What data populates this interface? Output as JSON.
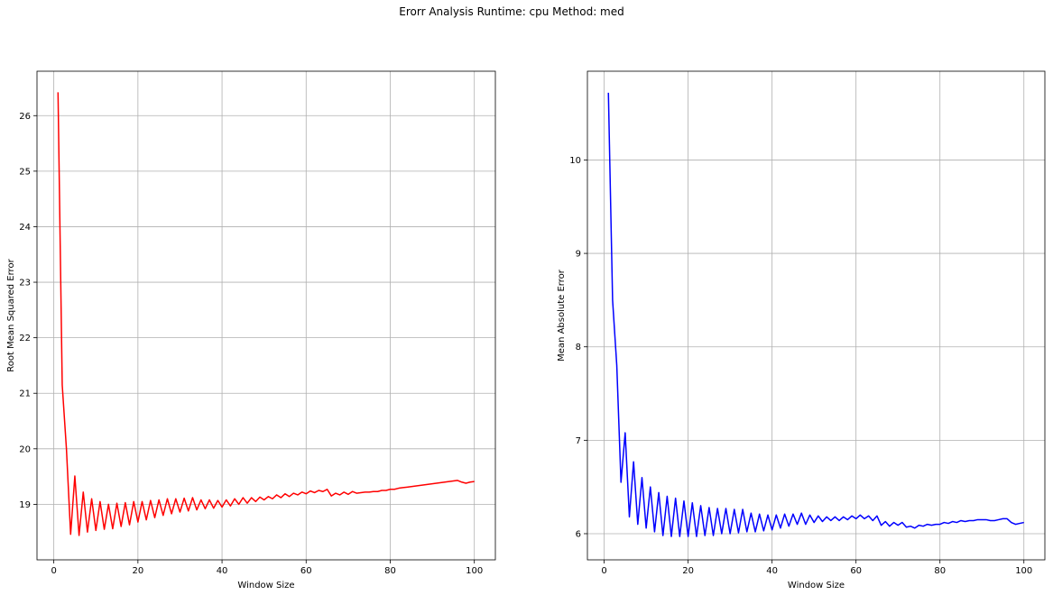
{
  "figure": {
    "suptitle": "Erorr Analysis Runtime: cpu Method: med"
  },
  "chart_data": [
    {
      "type": "line",
      "xlabel": "Window Size",
      "ylabel": "Root Mean Squared Error",
      "xlim": [
        -4,
        105
      ],
      "ylim": [
        18.0,
        26.8
      ],
      "xticks": [
        0,
        20,
        40,
        60,
        80,
        100
      ],
      "yticks": [
        19,
        20,
        21,
        22,
        23,
        24,
        25,
        26
      ],
      "grid": true,
      "series": [
        {
          "color": "#ff0000",
          "x": [
            1,
            2,
            3,
            4,
            5,
            6,
            7,
            8,
            9,
            10,
            11,
            12,
            13,
            14,
            15,
            16,
            17,
            18,
            19,
            20,
            21,
            22,
            23,
            24,
            25,
            26,
            27,
            28,
            29,
            30,
            31,
            32,
            33,
            34,
            35,
            36,
            37,
            38,
            39,
            40,
            41,
            42,
            43,
            44,
            45,
            46,
            47,
            48,
            49,
            50,
            51,
            52,
            53,
            54,
            55,
            56,
            57,
            58,
            59,
            60,
            61,
            62,
            63,
            64,
            65,
            66,
            67,
            68,
            69,
            70,
            71,
            72,
            73,
            74,
            75,
            76,
            77,
            78,
            79,
            80,
            81,
            82,
            83,
            84,
            85,
            86,
            87,
            88,
            89,
            90,
            91,
            92,
            93,
            94,
            95,
            96,
            97,
            98,
            99,
            100
          ],
          "values": [
            26.42,
            21.15,
            20.0,
            18.46,
            19.51,
            18.44,
            19.22,
            18.5,
            19.1,
            18.53,
            19.05,
            18.55,
            19.0,
            18.56,
            19.02,
            18.6,
            19.03,
            18.63,
            19.05,
            18.68,
            19.05,
            18.72,
            19.07,
            18.76,
            19.08,
            18.8,
            19.1,
            18.83,
            19.1,
            18.86,
            19.11,
            18.88,
            19.12,
            18.9,
            19.08,
            18.92,
            19.08,
            18.93,
            19.07,
            18.95,
            19.08,
            18.97,
            19.1,
            19.0,
            19.12,
            19.02,
            19.12,
            19.05,
            19.13,
            19.08,
            19.14,
            19.1,
            19.17,
            19.12,
            19.19,
            19.14,
            19.2,
            19.17,
            19.22,
            19.19,
            19.24,
            19.21,
            19.25,
            19.23,
            19.27,
            19.15,
            19.2,
            19.17,
            19.22,
            19.18,
            19.23,
            19.2,
            19.21,
            19.22,
            19.22,
            19.23,
            19.23,
            19.25,
            19.25,
            19.27,
            19.27,
            19.29,
            19.3,
            19.31,
            19.32,
            19.33,
            19.34,
            19.35,
            19.36,
            19.37,
            19.38,
            19.39,
            19.4,
            19.41,
            19.42,
            19.43,
            19.4,
            19.38,
            19.4,
            19.41
          ]
        }
      ]
    },
    {
      "type": "line",
      "xlabel": "Window Size",
      "ylabel": "Mean Absolute Error",
      "xlim": [
        -4,
        105
      ],
      "ylim": [
        5.72,
        10.95
      ],
      "xticks": [
        0,
        20,
        40,
        60,
        80,
        100
      ],
      "yticks": [
        6,
        7,
        8,
        9,
        10
      ],
      "grid": true,
      "series": [
        {
          "color": "#0000ff",
          "x": [
            1,
            2,
            3,
            4,
            5,
            6,
            7,
            8,
            9,
            10,
            11,
            12,
            13,
            14,
            15,
            16,
            17,
            18,
            19,
            20,
            21,
            22,
            23,
            24,
            25,
            26,
            27,
            28,
            29,
            30,
            31,
            32,
            33,
            34,
            35,
            36,
            37,
            38,
            39,
            40,
            41,
            42,
            43,
            44,
            45,
            46,
            47,
            48,
            49,
            50,
            51,
            52,
            53,
            54,
            55,
            56,
            57,
            58,
            59,
            60,
            61,
            62,
            63,
            64,
            65,
            66,
            67,
            68,
            69,
            70,
            71,
            72,
            73,
            74,
            75,
            76,
            77,
            78,
            79,
            80,
            81,
            82,
            83,
            84,
            85,
            86,
            87,
            88,
            89,
            90,
            91,
            92,
            93,
            94,
            95,
            96,
            97,
            98,
            99,
            100
          ],
          "values": [
            10.72,
            8.5,
            7.8,
            6.55,
            7.08,
            6.18,
            6.77,
            6.1,
            6.6,
            6.06,
            6.5,
            6.02,
            6.44,
            5.98,
            6.4,
            5.97,
            6.38,
            5.97,
            6.35,
            5.97,
            6.33,
            5.97,
            6.3,
            5.98,
            6.28,
            5.98,
            6.27,
            6.0,
            6.27,
            6.0,
            6.26,
            6.01,
            6.26,
            6.02,
            6.22,
            6.02,
            6.21,
            6.03,
            6.2,
            6.04,
            6.2,
            6.06,
            6.21,
            6.08,
            6.21,
            6.1,
            6.22,
            6.1,
            6.2,
            6.12,
            6.19,
            6.13,
            6.18,
            6.14,
            6.18,
            6.14,
            6.18,
            6.15,
            6.19,
            6.16,
            6.2,
            6.16,
            6.19,
            6.14,
            6.19,
            6.09,
            6.13,
            6.08,
            6.12,
            6.09,
            6.12,
            6.07,
            6.08,
            6.06,
            6.09,
            6.08,
            6.1,
            6.09,
            6.1,
            6.1,
            6.12,
            6.11,
            6.13,
            6.12,
            6.14,
            6.13,
            6.14,
            6.14,
            6.15,
            6.15,
            6.15,
            6.14,
            6.14,
            6.15,
            6.16,
            6.16,
            6.12,
            6.1,
            6.11,
            6.12
          ]
        }
      ]
    }
  ]
}
